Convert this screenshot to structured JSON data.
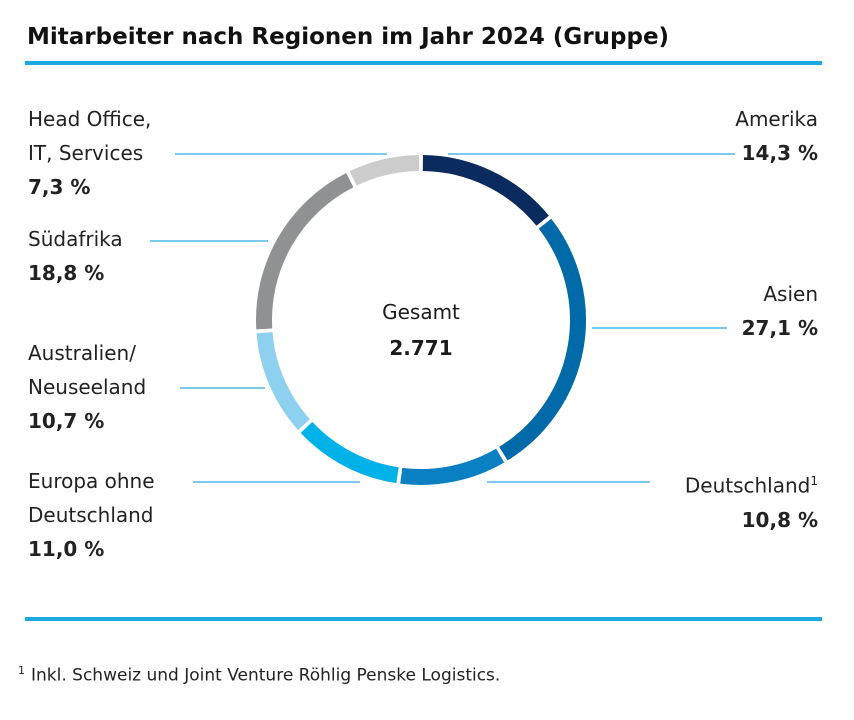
{
  "chart_data": {
    "type": "pie",
    "title": "Mitarbeiter nach Regionen im Jahr 2024 (Gruppe)",
    "center_label": "Gesamt",
    "center_value": "2.771",
    "slices": [
      {
        "label": "Amerika",
        "value": 14.3,
        "value_label": "14,3 %",
        "color": "#0b2a5e"
      },
      {
        "label": "Asien",
        "value": 27.1,
        "value_label": "27,1 %",
        "color": "#006aa8"
      },
      {
        "label": "Deutschland",
        "sup": "1",
        "value": 10.8,
        "value_label": "10,8 %",
        "color": "#0a80c2"
      },
      {
        "label": "Europa ohne Deutschland",
        "value": 11.0,
        "value_label": "11,0 %",
        "color": "#00b2e8"
      },
      {
        "label": "Australien/ Neuseeland",
        "value": 10.7,
        "value_label": "10,7 %",
        "color": "#8dd0f0"
      },
      {
        "label": "Südafrika",
        "value": 18.8,
        "value_label": "18,8 %",
        "color": "#8f9193"
      },
      {
        "label": "Head Office, IT, Services",
        "value": 7.3,
        "value_label": "7,3 %",
        "color": "#cccccc"
      }
    ],
    "leader_color": "#29abe2"
  },
  "labels": {
    "head1": "Head Office,",
    "head2": "IT, Services",
    "aus1": "Australien/",
    "aus2": "Neuseeland",
    "eur1": "Europa ohne",
    "eur2": "Deutschland"
  },
  "footnote": {
    "mark": "1",
    "text": "Inkl. Schweiz und Joint Venture Röhlig Penske Logistics."
  }
}
